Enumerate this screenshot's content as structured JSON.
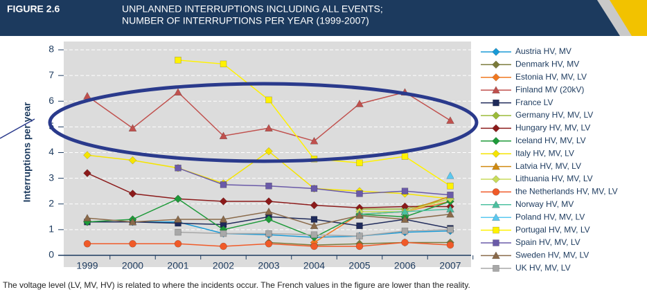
{
  "chart_data": {
    "type": "line",
    "figure_label": "FIGURE 2.6",
    "title": [
      "UNPLANNED INTERRUPTIONS INCLUDING ALL EVENTS;",
      "NUMBER OF INTERRUPTIONS PER YEAR (1999-2007)"
    ],
    "y_label": "Interruptions per year",
    "note": "The voltage level (LV, MV, HV) is related to where the incidents occur. The French values in the figure are lower than the reality.",
    "categories": [
      "1999",
      "2000",
      "2001",
      "2002",
      "2003",
      "2004",
      "2005",
      "2006",
      "2007"
    ],
    "ylim": [
      0,
      8
    ],
    "yticks": [
      0,
      1,
      2,
      3,
      4,
      5,
      6,
      7,
      8
    ],
    "grid": true,
    "legend": "right",
    "series": [
      {
        "name": "Austria HV, MV",
        "color": "#1a9ad6",
        "marker": "diamond",
        "values": [
          1.3,
          1.3,
          1.3,
          0.85,
          0.8,
          0.7,
          0.75,
          0.9,
          0.95
        ]
      },
      {
        "name": "Denmark HV, MV",
        "color": "#7a7a3a",
        "marker": "diamond",
        "values": [
          null,
          null,
          null,
          null,
          0.5,
          0.4,
          0.45,
          0.5,
          0.5
        ]
      },
      {
        "name": "Estonia HV, MV, LV",
        "color": "#f07820",
        "marker": "diamond",
        "values": [
          null,
          null,
          null,
          null,
          null,
          0.5,
          1.6,
          1.7,
          2.1
        ]
      },
      {
        "name": "Finland MV (20kV)",
        "color": "#c0504d",
        "marker": "triangle",
        "values": [
          6.2,
          4.95,
          6.35,
          4.65,
          4.95,
          4.45,
          5.9,
          6.35,
          5.25
        ]
      },
      {
        "name": "France LV",
        "color": "#1f2a5a",
        "marker": "square",
        "values": [
          1.3,
          1.3,
          1.25,
          1.2,
          1.5,
          1.4,
          1.15,
          1.4,
          1.05
        ]
      },
      {
        "name": "Germany HV, MV, LV",
        "color": "#9bbb3a",
        "marker": "diamond",
        "values": [
          null,
          null,
          null,
          null,
          null,
          null,
          1.8,
          1.8,
          2.2
        ]
      },
      {
        "name": "Hungary HV, MV, LV",
        "color": "#8b1a1a",
        "marker": "diamond",
        "values": [
          3.2,
          2.4,
          2.2,
          2.1,
          2.1,
          1.95,
          1.85,
          1.9,
          1.9
        ]
      },
      {
        "name": "Iceland HV, MV, LV",
        "color": "#1e9a3a",
        "marker": "diamond",
        "values": [
          1.3,
          1.4,
          2.2,
          1.0,
          1.4,
          0.7,
          1.6,
          1.5,
          2.1
        ]
      },
      {
        "name": "Italy HV, MV, LV",
        "color": "#f5e400",
        "marker": "diamond",
        "values": [
          3.9,
          3.7,
          3.4,
          2.8,
          4.05,
          2.6,
          2.5,
          2.4,
          2.2
        ]
      },
      {
        "name": "Latvia HV, MV, LV",
        "color": "#d08a10",
        "marker": "triangle",
        "values": [
          null,
          null,
          null,
          null,
          null,
          null,
          1.6,
          1.7,
          2.3
        ]
      },
      {
        "name": "Lithuania HV, MV, LV",
        "color": "#c8dc5a",
        "marker": "diamond",
        "values": [
          null,
          null,
          null,
          null,
          null,
          null,
          1.7,
          1.7,
          2.2
        ]
      },
      {
        "name": "the Netherlands HV, MV, LV",
        "color": "#f05a28",
        "marker": "circle",
        "values": [
          0.45,
          0.45,
          0.45,
          0.35,
          0.45,
          0.35,
          0.35,
          0.5,
          0.4
        ]
      },
      {
        "name": "Norway HV, MV",
        "color": "#4cc0a0",
        "marker": "triangle",
        "values": [
          null,
          null,
          null,
          null,
          null,
          null,
          1.6,
          1.7,
          1.8
        ]
      },
      {
        "name": "Poland HV, MV, LV",
        "color": "#5ac8f0",
        "marker": "triangle",
        "values": [
          null,
          null,
          null,
          null,
          null,
          null,
          null,
          null,
          3.1
        ]
      },
      {
        "name": "Portugal HV, MV, LV",
        "color": "#fff200",
        "marker": "square",
        "values": [
          null,
          null,
          7.6,
          7.45,
          6.05,
          3.75,
          3.6,
          3.85,
          2.7
        ]
      },
      {
        "name": "Spain HV, MV, LV",
        "color": "#6a5aa8",
        "marker": "square",
        "values": [
          null,
          null,
          3.4,
          2.75,
          2.7,
          2.6,
          2.4,
          2.5,
          2.35
        ]
      },
      {
        "name": "Sweden HV, MV, LV",
        "color": "#8a6a4a",
        "marker": "triangle",
        "values": [
          1.45,
          1.3,
          1.4,
          1.4,
          1.7,
          1.15,
          1.55,
          1.4,
          1.6
        ]
      },
      {
        "name": "UK HV, MV, LV",
        "color": "#a8a8a8",
        "marker": "square",
        "values": [
          null,
          null,
          0.9,
          0.85,
          0.85,
          0.8,
          0.75,
          0.95,
          1.0
        ]
      }
    ]
  }
}
